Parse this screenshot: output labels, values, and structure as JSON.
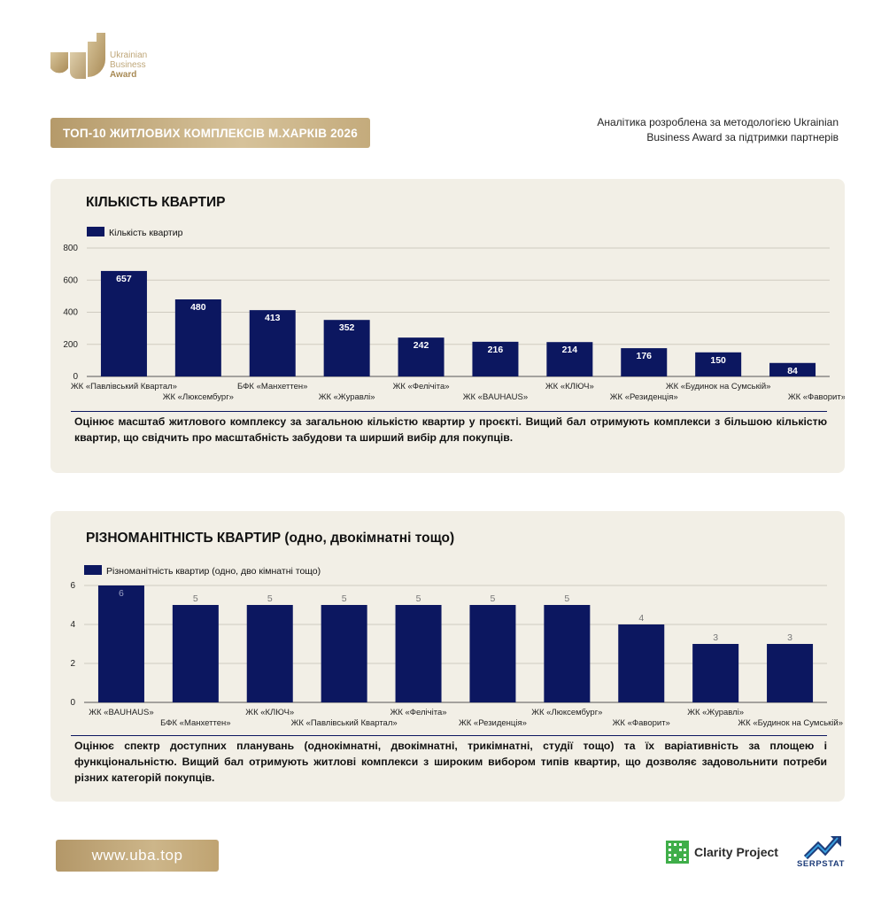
{
  "brand": {
    "line1": "Ukrainian",
    "line2": "Business",
    "line3": "Award"
  },
  "header": {
    "title": "ТОП-10 ЖИТЛОВИХ КОМПЛЕКСІВ М.ХАРКІВ 2026",
    "intro_line1": "Аналітика розроблена за методологією Ukrainian",
    "intro_line2": "Business Award за підтримки партнерів"
  },
  "section1": {
    "title": "КІЛЬКІСТЬ КВАРТИР",
    "description": "Оцінює масштаб житлового комплексу за загальною кількістю квартир у проєкті. Вищий бал отримують комплекси з більшою кількістю квартир, що свідчить про масштабність забудови та ширший вибір для покупців."
  },
  "section2": {
    "title": "РІЗНОМАНІТНІСТЬ КВАРТИР (одно, двокімнатні тощо)",
    "description": "Оцінює спектр доступних планувань (однокімнатні, двокімнатні, трикімнатні, студії тощо) та їх варіативність за площею і функціональністю. Вищий бал отримують житлові комплекси з широким вибором типів квартир, що дозволяє задовольнити потреби різних категорій покупців."
  },
  "footer": {
    "url": "www.uba.top",
    "partner1": "Clarity Project",
    "partner2": "SERPSTAT"
  },
  "colors": {
    "bar": "#0c1760",
    "gold": "#c4ab7c",
    "card": "#f2efe6"
  },
  "chart_data": [
    {
      "type": "bar",
      "title": "КІЛЬКІСТЬ КВАРТИР",
      "legend": "Кількість квартир",
      "categories": [
        "ЖК «Павлівський Квартал»",
        "ЖК «Люксембург»",
        "БФК «Манхеттен»",
        "ЖК «Журавлі»",
        "ЖК «Фелічіта»",
        "ЖК «BAUHAUS»",
        "ЖК «КЛЮЧ»",
        "ЖК «Резиденція»",
        "ЖК «Будинок на Сумській»",
        "ЖК «Фаворит»"
      ],
      "values": [
        657,
        480,
        413,
        352,
        242,
        216,
        214,
        176,
        150,
        84
      ],
      "ylim": [
        0,
        800
      ],
      "yticks": [
        0,
        200,
        400,
        600,
        800
      ],
      "grid": true,
      "legend_position": "top-left"
    },
    {
      "type": "bar",
      "title": "РІЗНОМАНІТНІСТЬ КВАРТИР (одно, двокімнатні тощо)",
      "legend": "Різноманітність квартир (одно, дво кімнатні тощо)",
      "categories": [
        "ЖК «BAUHAUS»",
        "БФК «Манхеттен»",
        "ЖК «КЛЮЧ»",
        "ЖК «Павлівський Квартал»",
        "ЖК «Фелічіта»",
        "ЖК «Резиденція»",
        "ЖК «Люксембург»",
        "ЖК «Фаворит»",
        "ЖК «Журавлі»",
        "ЖК «Будинок на Сумській»"
      ],
      "values": [
        6,
        5,
        5,
        5,
        5,
        5,
        5,
        4,
        3,
        3
      ],
      "ylim": [
        0,
        6
      ],
      "yticks": [
        0,
        2,
        4,
        6
      ],
      "grid": true,
      "legend_position": "top-left"
    }
  ]
}
